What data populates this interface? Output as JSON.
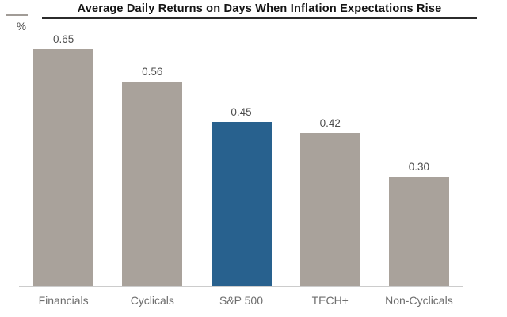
{
  "header": {
    "unit_label": "%"
  },
  "chart_data": {
    "type": "bar",
    "title": "Average Daily Returns on Days When Inflation Expectations Rise",
    "xlabel": "",
    "ylabel": "%",
    "categories": [
      "Financials",
      "Cyclicals",
      "S&P 500",
      "TECH+",
      "Non-Cyclicals"
    ],
    "values": [
      0.65,
      0.56,
      0.45,
      0.42,
      0.3
    ],
    "value_labels": [
      "0.65",
      "0.56",
      "0.45",
      "0.42",
      "0.30"
    ],
    "bar_colors": [
      "#a9a29b",
      "#a9a29b",
      "#28618e",
      "#a9a29b",
      "#a9a29b"
    ],
    "highlight_category": "S&P 500",
    "ylim": [
      0,
      0.65
    ],
    "grid": false,
    "legend": null,
    "data_labels_shown": true
  },
  "colors": {
    "bar_default": "#a9a29b",
    "bar_highlight": "#28618e",
    "axis_line": "#cccccc",
    "title_underline": "#2b2b2b",
    "value_label_text": "#4d4d4d",
    "category_label_text": "#6e6e6e",
    "title_text": "#141414"
  }
}
